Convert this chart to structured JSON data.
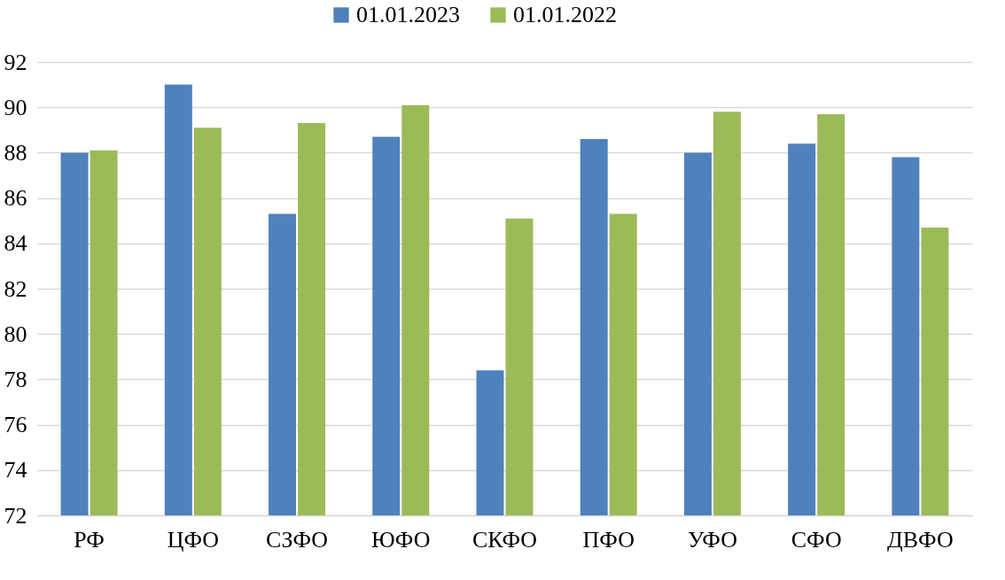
{
  "chart_data": {
    "type": "bar",
    "categories": [
      "РФ",
      "ЦФО",
      "СЗФО",
      "ЮФО",
      "СКФО",
      "ПФО",
      "УФО",
      "СФО",
      "ДВФО"
    ],
    "series": [
      {
        "name": "01.01.2023",
        "color": "#4f81bd",
        "values": [
          88.0,
          91.0,
          85.3,
          88.7,
          78.4,
          88.6,
          88.0,
          88.4,
          87.8
        ]
      },
      {
        "name": "01.01.2022",
        "color": "#9bbb59",
        "values": [
          88.1,
          89.1,
          89.3,
          90.1,
          85.1,
          85.3,
          89.8,
          89.7,
          84.7
        ]
      }
    ],
    "ylim": [
      72,
      92
    ],
    "yticks": [
      72,
      74,
      76,
      78,
      80,
      82,
      84,
      86,
      88,
      90,
      92
    ],
    "grid": "y",
    "legend": "top"
  }
}
